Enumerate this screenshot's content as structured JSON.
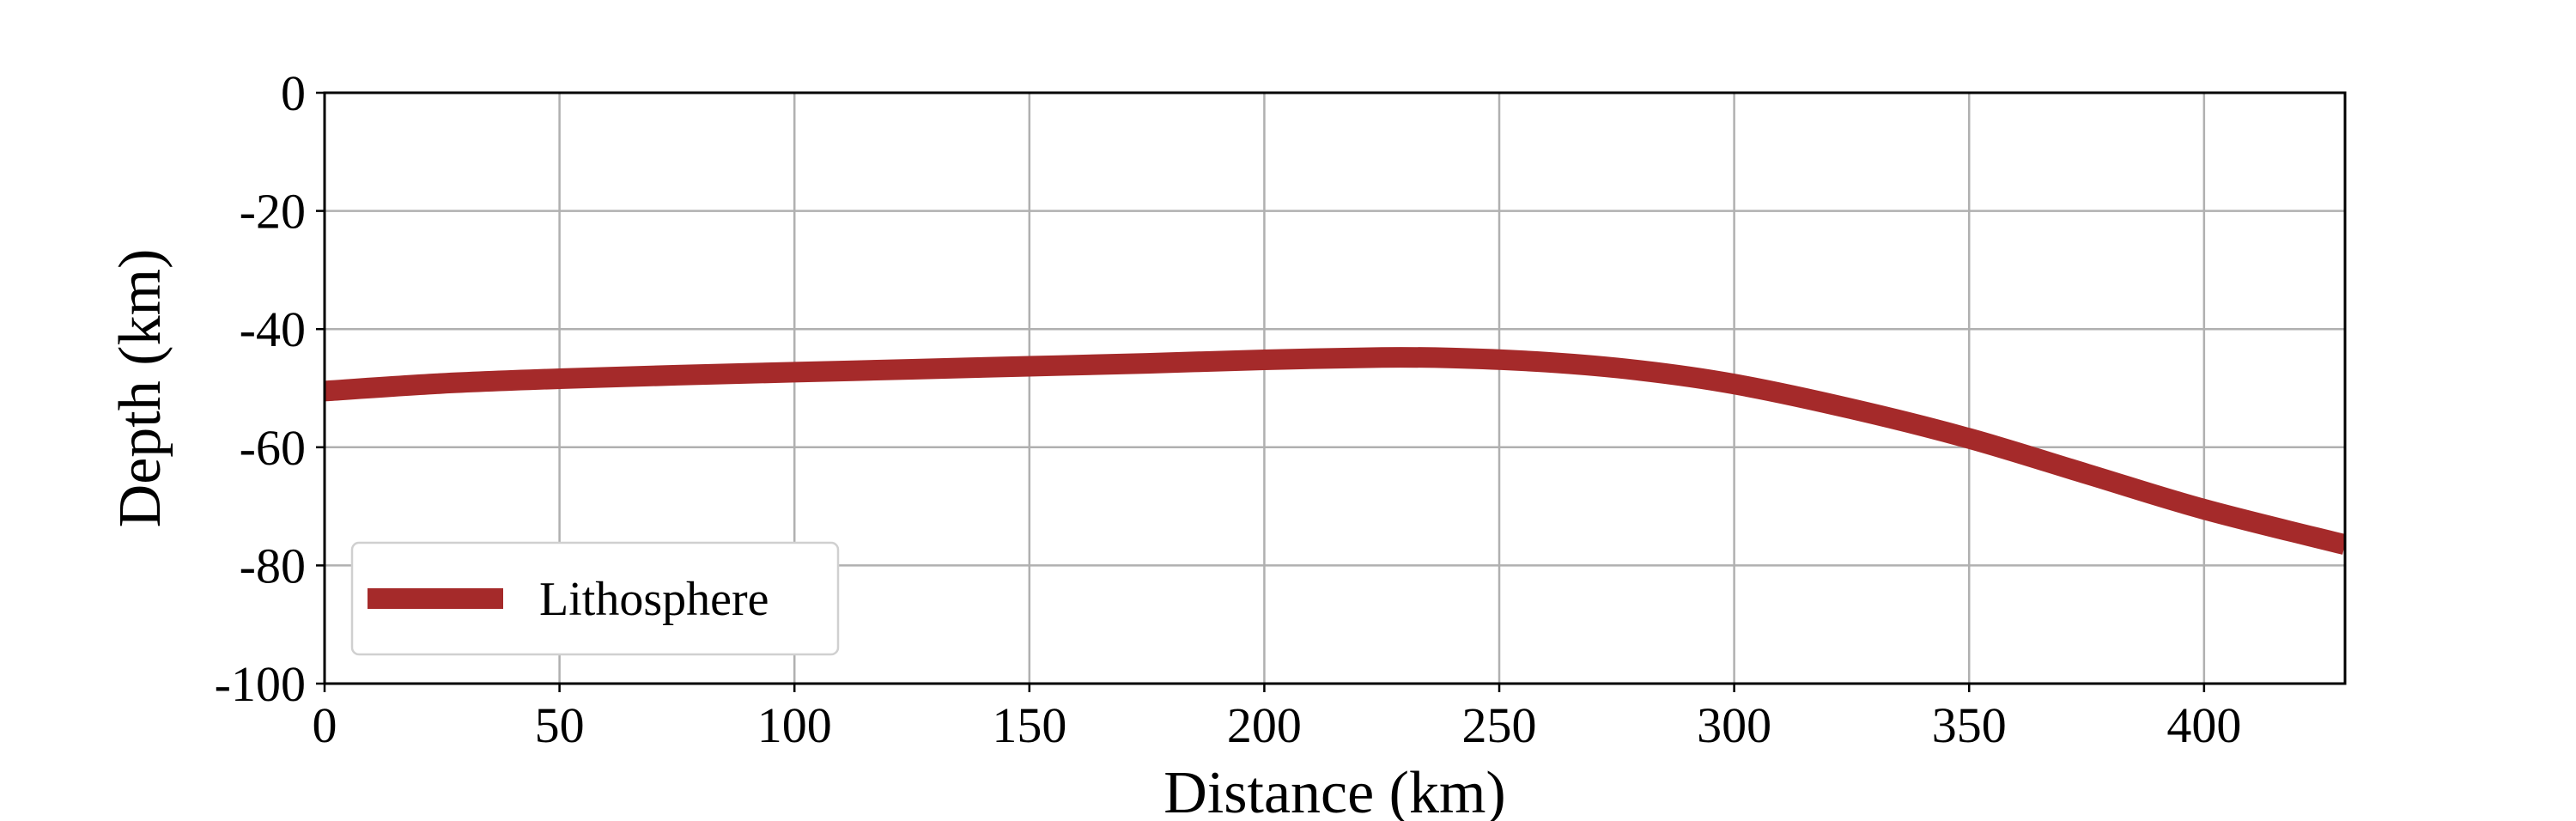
{
  "chart_data": {
    "type": "line",
    "title": "",
    "xlabel": "Distance (km)",
    "ylabel": "Depth (km)",
    "xlim": [
      0,
      430
    ],
    "ylim": [
      -100,
      0
    ],
    "xticks": [
      0,
      50,
      100,
      150,
      200,
      250,
      300,
      350,
      400
    ],
    "yticks": [
      0,
      -20,
      -40,
      -60,
      -80,
      -100
    ],
    "xtick_labels": [
      "0",
      "50",
      "100",
      "150",
      "200",
      "250",
      "300",
      "350",
      "400"
    ],
    "ytick_labels": [
      "0",
      "-20",
      "-40",
      "-60",
      "-80",
      "-100"
    ],
    "grid": true,
    "legend_position": "lower-left",
    "colors": {
      "series": "#a52a2a",
      "grid": "#b0b0b0",
      "axis": "#000000"
    },
    "series": [
      {
        "name": "Lithosphere",
        "x": [
          0,
          25,
          50,
          75,
          100,
          125,
          150,
          175,
          200,
          225,
          240,
          260,
          280,
          300,
          325,
          350,
          375,
          400,
          430
        ],
        "y": [
          -50.5,
          -49.2,
          -48.4,
          -47.8,
          -47.3,
          -46.8,
          -46.3,
          -45.8,
          -45.2,
          -44.8,
          -44.9,
          -45.6,
          -47.0,
          -49.3,
          -53.5,
          -58.5,
          -64.5,
          -70.5,
          -76.5
        ]
      }
    ]
  }
}
